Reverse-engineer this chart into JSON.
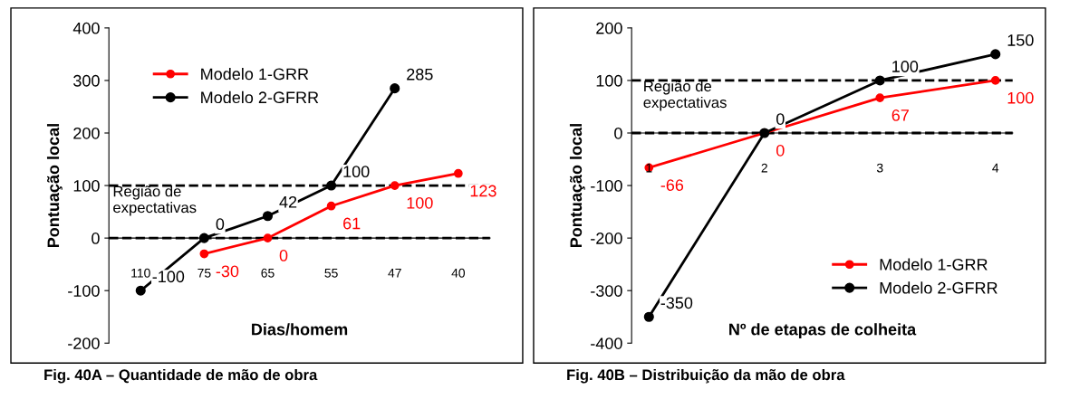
{
  "chart_data": [
    {
      "type": "line",
      "xlabel": "Dias/homem",
      "ylabel": "Pontuação local",
      "categories": [
        "110",
        "75",
        "65",
        "55",
        "47",
        "40"
      ],
      "series": [
        {
          "name": "Modelo 1-GRR",
          "color": "#ff0000",
          "values": [
            null,
            -30,
            0,
            61,
            100,
            123
          ]
        },
        {
          "name": "Modelo 2-GFRR",
          "color": "#000000",
          "values": [
            -100,
            0,
            42,
            100,
            285,
            null
          ]
        }
      ],
      "ylim": [
        -200,
        400
      ],
      "yticks": [
        -200,
        -100,
        0,
        100,
        200,
        300,
        400
      ],
      "marker": "circle",
      "data_labels": true,
      "legend": "top left",
      "grid": false,
      "ref_lines": [
        {
          "axis": "y",
          "value": 0,
          "color": "#000000",
          "line_style": "dashed"
        },
        {
          "axis": "y",
          "value": 100,
          "color": "#000000",
          "line_style": "dashed"
        }
      ],
      "annotations": [
        "Região de\nexpectativas",
        "Fig. 40A – Quantidade de mão de obra"
      ]
    },
    {
      "type": "line",
      "xlabel": "Nº de etapas de colheita",
      "ylabel": "Pontuação local",
      "categories": [
        "1",
        "2",
        "3",
        "4"
      ],
      "series": [
        {
          "name": "Modelo 1-GRR",
          "color": "#ff0000",
          "values": [
            -66,
            0,
            67,
            100
          ]
        },
        {
          "name": "Modelo 2-GFRR",
          "color": "#000000",
          "values": [
            -350,
            0,
            100,
            150
          ]
        }
      ],
      "ylim": [
        -400,
        200
      ],
      "yticks": [
        -400,
        -300,
        -200,
        -100,
        0,
        100,
        200
      ],
      "marker": "circle",
      "data_labels": true,
      "legend": "bottom right",
      "grid": false,
      "ref_lines": [
        {
          "axis": "y",
          "value": 0,
          "color": "#000000",
          "line_style": "dashed"
        },
        {
          "axis": "y",
          "value": 100,
          "color": "#000000",
          "line_style": "dashed"
        }
      ],
      "annotations": [
        "Região de\nexpectativas",
        "Fig. 40B – Distribuição da mão de obra"
      ]
    }
  ]
}
